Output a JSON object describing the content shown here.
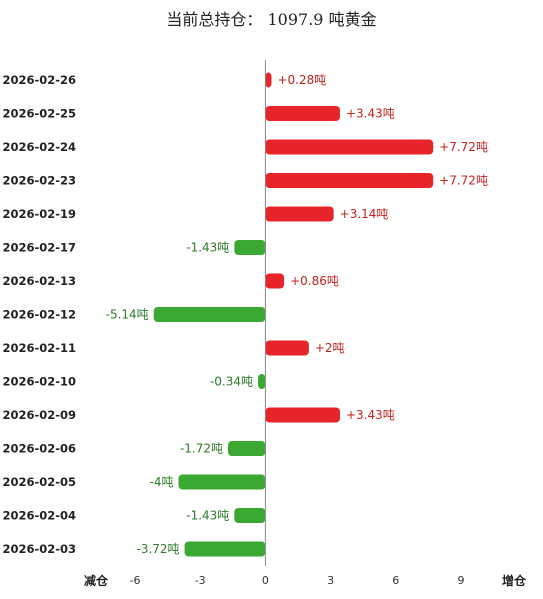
{
  "title": "当前总持仓： 1097.9 吨黄金",
  "chart_data": {
    "type": "bar",
    "orientation": "horizontal",
    "categories": [
      "2026-02-26",
      "2026-02-25",
      "2026-02-24",
      "2026-02-23",
      "2026-02-19",
      "2026-02-17",
      "2026-02-13",
      "2026-02-12",
      "2026-02-11",
      "2026-02-10",
      "2026-02-09",
      "2026-02-06",
      "2026-02-05",
      "2026-02-04",
      "2026-02-03"
    ],
    "values": [
      0.28,
      3.43,
      7.72,
      7.72,
      3.14,
      -1.43,
      0.86,
      -5.14,
      2,
      -0.34,
      3.43,
      -1.72,
      -4,
      -1.43,
      -3.72
    ],
    "value_labels": [
      "+0.28吨",
      "+3.43吨",
      "+7.72吨",
      "+7.72吨",
      "+3.14吨",
      "-1.43吨",
      "+0.86吨",
      "-5.14吨",
      "+2吨",
      "-0.34吨",
      "+3.43吨",
      "-1.72吨",
      "-4吨",
      "-1.43吨",
      "-3.72吨"
    ],
    "xlim": [
      -6,
      9
    ],
    "xticks": [
      "-6",
      "-3",
      "0",
      "3",
      "6",
      "9"
    ],
    "xlabel_left": "减仓",
    "xlabel_right": "增仓",
    "grid": false,
    "legend": "none",
    "colors": {
      "positive_bar": "#e8242b",
      "positive_label": "#c22420",
      "negative_bar": "#3aa832",
      "negative_label": "#2e7a2a",
      "axis": "#888888"
    }
  }
}
